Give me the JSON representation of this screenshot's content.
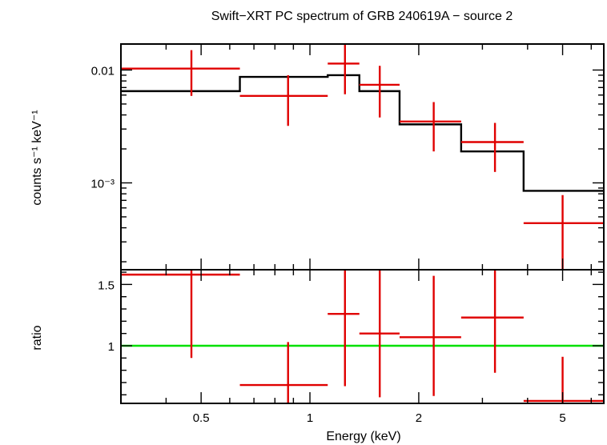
{
  "title": "Swift−XRT PC spectrum of GRB 240619A − source 2",
  "chart_data": [
    {
      "type": "scatter",
      "panel": "spectrum",
      "xscale": "log",
      "yscale": "log",
      "xlim": [
        0.3,
        6.5
      ],
      "ylim": [
        0.00017,
        0.017
      ],
      "ylabel": "counts s⁻¹ keV⁻¹",
      "ytick_labels": [
        {
          "value": 0.01,
          "label": "0.01"
        },
        {
          "value": 0.001,
          "label": "10⁻³"
        }
      ],
      "data": [
        {
          "x": 0.47,
          "xlo": 0.3,
          "xhi": 0.64,
          "y": 0.0103,
          "ylo": 0.0059,
          "yhi": 0.015
        },
        {
          "x": 0.87,
          "xlo": 0.64,
          "xhi": 1.12,
          "y": 0.0059,
          "ylo": 0.0032,
          "yhi": 0.009
        },
        {
          "x": 1.25,
          "xlo": 1.12,
          "xhi": 1.37,
          "y": 0.0114,
          "ylo": 0.0061,
          "yhi": 0.0173
        },
        {
          "x": 1.56,
          "xlo": 1.37,
          "xhi": 1.77,
          "y": 0.0074,
          "ylo": 0.0038,
          "yhi": 0.0109
        },
        {
          "x": 2.2,
          "xlo": 1.77,
          "xhi": 2.62,
          "y": 0.0035,
          "ylo": 0.0019,
          "yhi": 0.0052
        },
        {
          "x": 3.25,
          "xlo": 2.62,
          "xhi": 3.9,
          "y": 0.0023,
          "ylo": 0.00125,
          "yhi": 0.0034
        },
        {
          "x": 5.0,
          "xlo": 3.9,
          "xhi": 6.5,
          "y": 0.00044,
          "ylo": 0.00017,
          "yhi": 0.00078
        }
      ],
      "model": [
        {
          "xlo": 0.3,
          "xhi": 0.64,
          "y": 0.0065
        },
        {
          "xlo": 0.64,
          "xhi": 1.12,
          "y": 0.0087
        },
        {
          "xlo": 1.12,
          "xhi": 1.37,
          "y": 0.009
        },
        {
          "xlo": 1.37,
          "xhi": 1.77,
          "y": 0.0065
        },
        {
          "xlo": 1.77,
          "xhi": 2.62,
          "y": 0.0033
        },
        {
          "xlo": 2.62,
          "xhi": 3.9,
          "y": 0.0019
        },
        {
          "xlo": 3.9,
          "xhi": 6.5,
          "y": 0.00085
        }
      ],
      "colors": {
        "data": "#e00000",
        "model": "#000000"
      }
    },
    {
      "type": "scatter",
      "panel": "ratio",
      "xscale": "log",
      "yscale": "linear",
      "xlim": [
        0.3,
        6.5
      ],
      "ylim": [
        0.53,
        1.62
      ],
      "ylabel": "ratio",
      "xlabel": "Energy (keV)",
      "ytick_labels": [
        {
          "value": 1,
          "label": "1"
        },
        {
          "value": 1.5,
          "label": "1.5"
        }
      ],
      "xtick_labels": [
        {
          "value": 0.5,
          "label": "0.5"
        },
        {
          "value": 1,
          "label": "1"
        },
        {
          "value": 2,
          "label": "2"
        },
        {
          "value": 5,
          "label": "5"
        }
      ],
      "data": [
        {
          "x": 0.47,
          "xlo": 0.3,
          "xhi": 0.64,
          "y": 1.58,
          "ylo": 0.9,
          "yhi": 1.62
        },
        {
          "x": 0.87,
          "xlo": 0.64,
          "xhi": 1.12,
          "y": 0.68,
          "ylo": 0.53,
          "yhi": 1.03
        },
        {
          "x": 1.25,
          "xlo": 1.12,
          "xhi": 1.37,
          "y": 1.26,
          "ylo": 0.67,
          "yhi": 1.62
        },
        {
          "x": 1.56,
          "xlo": 1.37,
          "xhi": 1.77,
          "y": 1.1,
          "ylo": 0.58,
          "yhi": 1.62
        },
        {
          "x": 2.2,
          "xlo": 1.77,
          "xhi": 2.62,
          "y": 1.07,
          "ylo": 0.59,
          "yhi": 1.57
        },
        {
          "x": 3.25,
          "xlo": 2.62,
          "xhi": 3.9,
          "y": 1.23,
          "ylo": 0.78,
          "yhi": 1.62
        },
        {
          "x": 5.0,
          "xlo": 3.9,
          "xhi": 6.5,
          "y": 0.55,
          "ylo": 0.53,
          "yhi": 0.91
        }
      ],
      "reference_line": 1,
      "colors": {
        "data": "#e00000",
        "reference": "#00e000"
      }
    }
  ]
}
